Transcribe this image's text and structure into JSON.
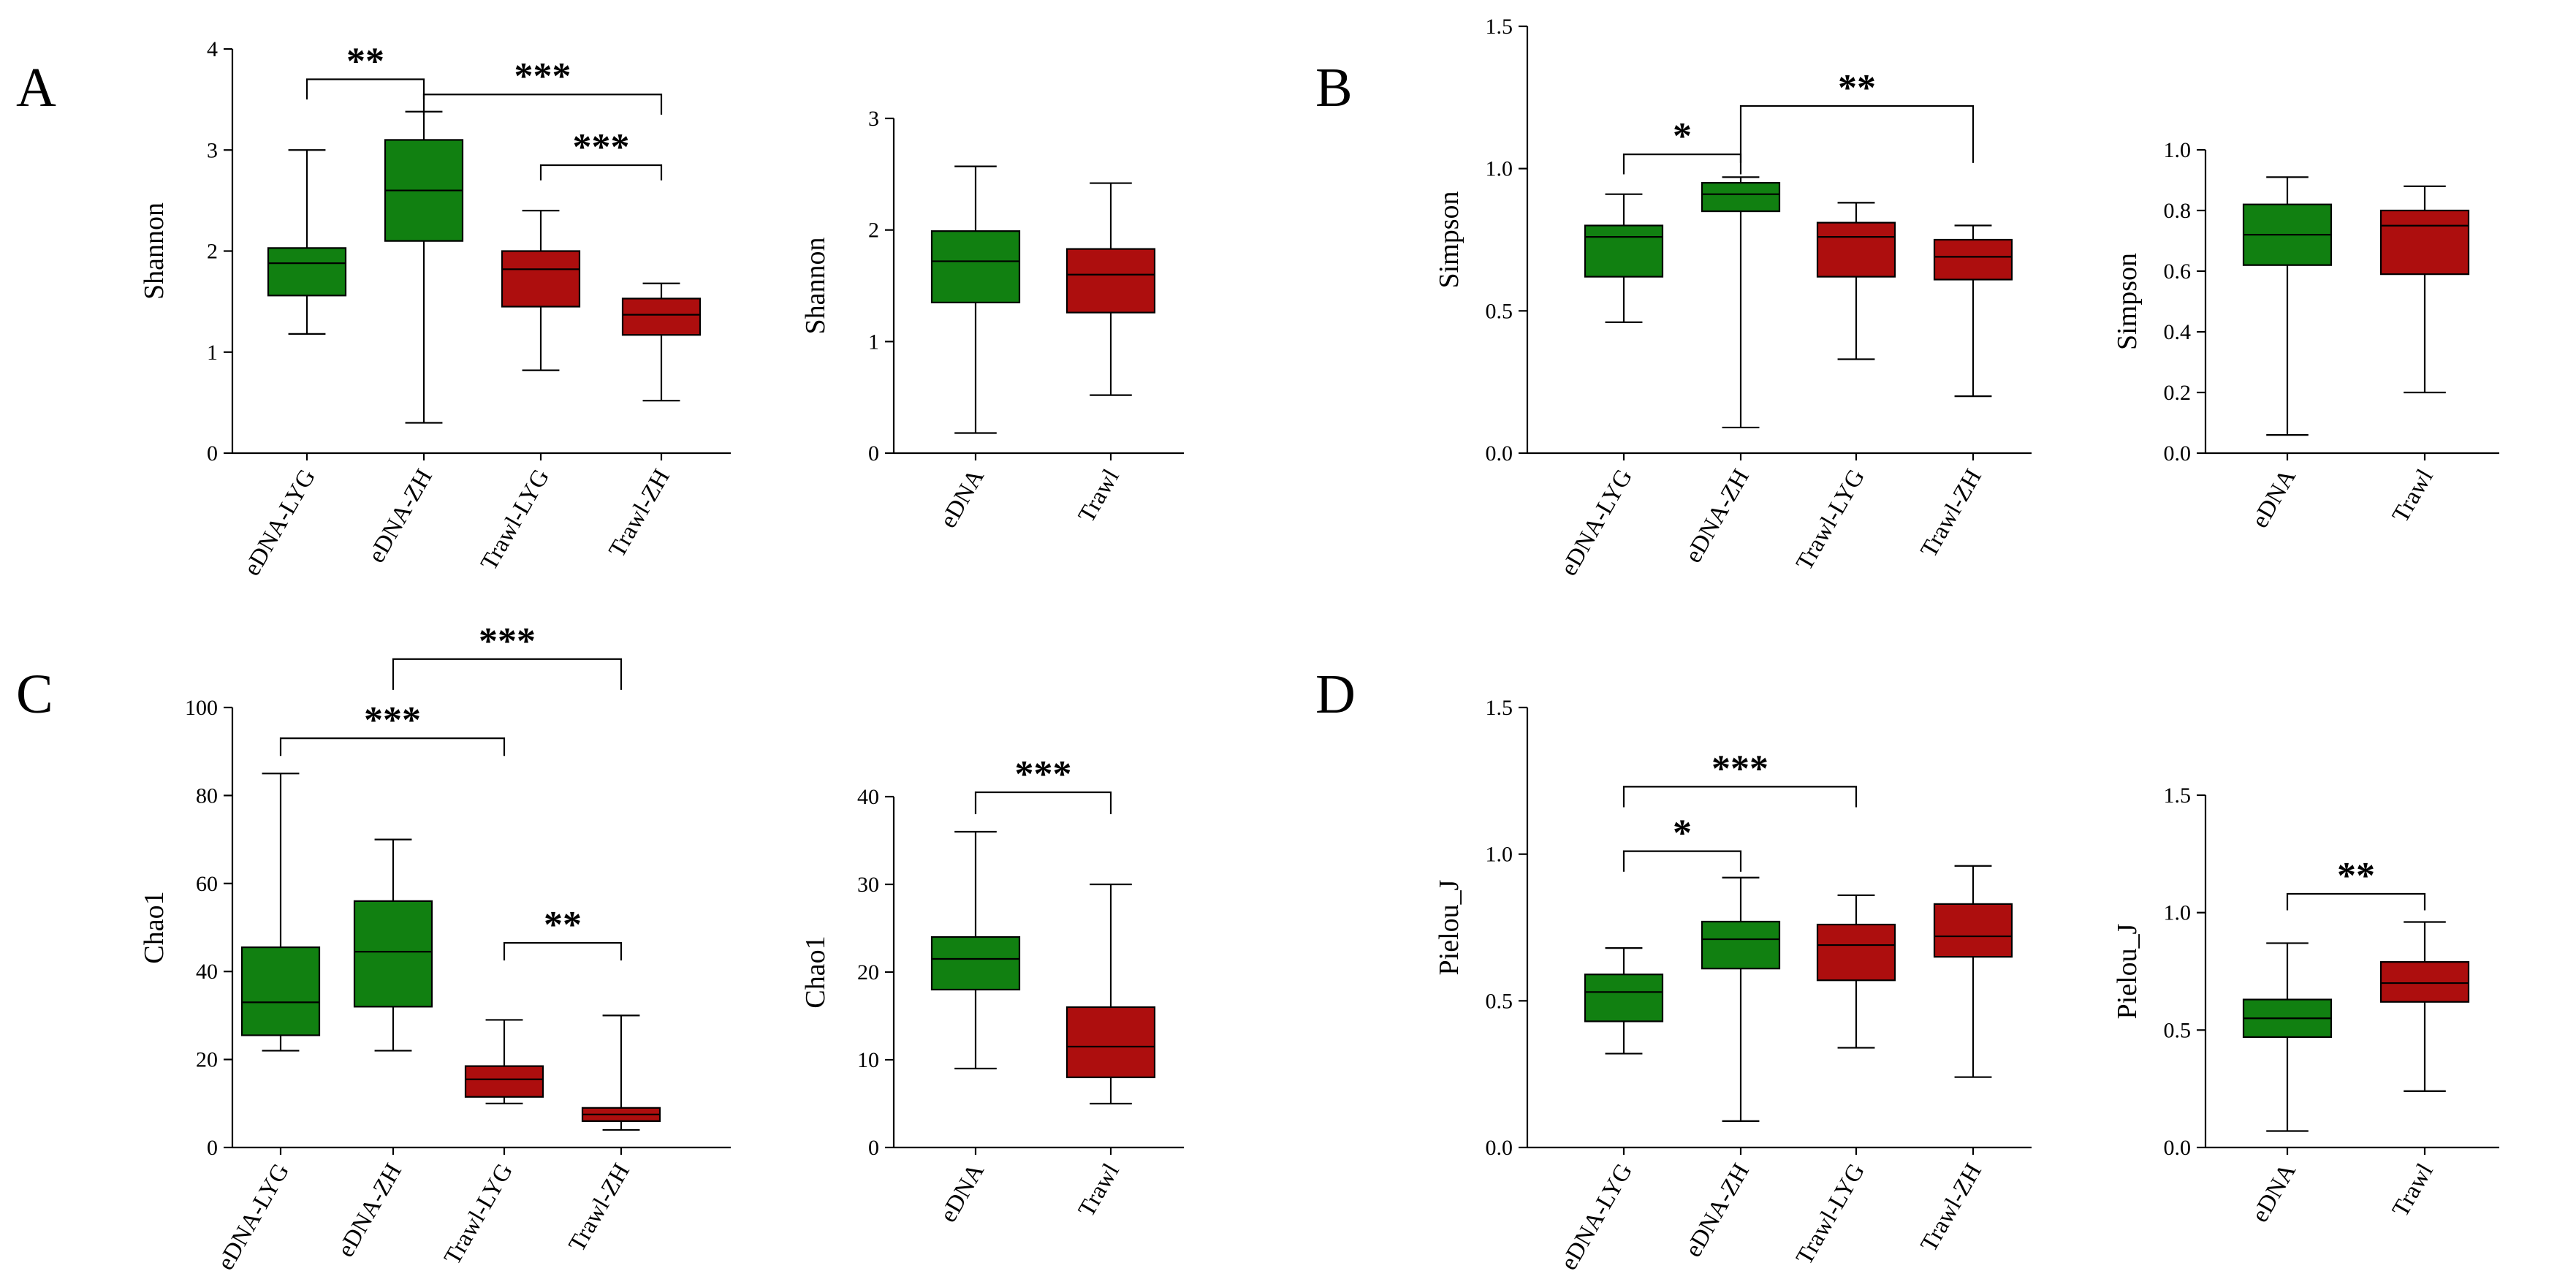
{
  "colors": {
    "eDNA": "#118011",
    "Trawl": "#ad0e0e",
    "axis": "#000000"
  },
  "chart_data": [
    {
      "panel": "A",
      "type": "box",
      "ylabel": "Shannon",
      "ylim": [
        0,
        4
      ],
      "yticks": [
        "0",
        "1",
        "2",
        "3",
        "4"
      ],
      "categories": [
        "eDNA-LYG",
        "eDNA-ZH",
        "Trawl-LYG",
        "Trawl-ZH"
      ],
      "groups": [
        "eDNA",
        "eDNA",
        "Trawl",
        "Trawl"
      ],
      "boxes": [
        {
          "min": 1.18,
          "q1": 1.56,
          "median": 1.88,
          "q3": 2.03,
          "max": 3.0
        },
        {
          "min": 0.3,
          "q1": 2.1,
          "median": 2.6,
          "q3": 3.1,
          "max": 3.38
        },
        {
          "min": 0.82,
          "q1": 1.45,
          "median": 1.82,
          "q3": 2.0,
          "max": 2.4
        },
        {
          "min": 0.52,
          "q1": 1.17,
          "median": 1.37,
          "q3": 1.53,
          "max": 1.68
        }
      ],
      "significance": [
        {
          "from": 0,
          "to": 1,
          "label": "**",
          "y": 3.7,
          "tick": 0.2
        },
        {
          "from": 1,
          "to": 3,
          "label": "***",
          "y": 3.55,
          "tick": 0.2
        },
        {
          "from": 2,
          "to": 3,
          "label": "***",
          "y": 2.85,
          "tick": 0.15
        }
      ]
    },
    {
      "panel": "A2",
      "type": "box",
      "ylabel": "Shannon",
      "ylim": [
        0,
        3
      ],
      "yticks": [
        "0",
        "1",
        "2",
        "3"
      ],
      "categories": [
        "eDNA",
        "Trawl"
      ],
      "groups": [
        "eDNA",
        "Trawl"
      ],
      "boxes": [
        {
          "min": 0.18,
          "q1": 1.35,
          "median": 1.72,
          "q3": 1.99,
          "max": 2.57
        },
        {
          "min": 0.52,
          "q1": 1.26,
          "median": 1.6,
          "q3": 1.83,
          "max": 2.42
        }
      ],
      "significance": []
    },
    {
      "panel": "B",
      "type": "box",
      "ylabel": "Simpson",
      "ylim": [
        0,
        1.5
      ],
      "yticks": [
        "0.0",
        "0.5",
        "1.0",
        "1.5"
      ],
      "categories": [
        "eDNA-LYG",
        "eDNA-ZH",
        "Trawl-LYG",
        "Trawl-ZH"
      ],
      "groups": [
        "eDNA",
        "eDNA",
        "Trawl",
        "Trawl"
      ],
      "boxes": [
        {
          "min": 0.46,
          "q1": 0.62,
          "median": 0.76,
          "q3": 0.8,
          "max": 0.91
        },
        {
          "min": 0.09,
          "q1": 0.85,
          "median": 0.91,
          "q3": 0.95,
          "max": 0.97
        },
        {
          "min": 0.33,
          "q1": 0.62,
          "median": 0.76,
          "q3": 0.81,
          "max": 0.88
        },
        {
          "min": 0.2,
          "q1": 0.61,
          "median": 0.69,
          "q3": 0.75,
          "max": 0.8
        }
      ],
      "significance": [
        {
          "from": 0,
          "to": 1,
          "label": "*",
          "y": 1.05,
          "tick": 0.07
        },
        {
          "from": 1,
          "to": 3,
          "label": "**",
          "y": 1.22,
          "tick": 0.2
        }
      ]
    },
    {
      "panel": "B2",
      "type": "box",
      "ylabel": "Simpson",
      "ylim": [
        0,
        1.0
      ],
      "yticks": [
        "0.0",
        "0.2",
        "0.4",
        "0.6",
        "0.8",
        "1.0"
      ],
      "categories": [
        "eDNA",
        "Trawl"
      ],
      "groups": [
        "eDNA",
        "Trawl"
      ],
      "boxes": [
        {
          "min": 0.06,
          "q1": 0.62,
          "median": 0.72,
          "q3": 0.82,
          "max": 0.91
        },
        {
          "min": 0.2,
          "q1": 0.59,
          "median": 0.75,
          "q3": 0.8,
          "max": 0.88
        }
      ],
      "significance": []
    },
    {
      "panel": "C",
      "type": "box",
      "ylabel": "Chao1",
      "ylim": [
        0,
        100
      ],
      "yticks": [
        "0",
        "20",
        "40",
        "60",
        "80",
        "100"
      ],
      "categories": [
        "eDNA-LYG",
        "eDNA-ZH",
        "Trawl-LYG",
        "Trawl-ZH"
      ],
      "groups": [
        "eDNA",
        "eDNA",
        "Trawl",
        "Trawl"
      ],
      "boxes": [
        {
          "min": 22,
          "q1": 25.5,
          "median": 33,
          "q3": 45.5,
          "max": 85
        },
        {
          "min": 22,
          "q1": 32,
          "median": 44.5,
          "q3": 56,
          "max": 70
        },
        {
          "min": 10,
          "q1": 11.5,
          "median": 15.5,
          "q3": 18.5,
          "max": 29
        },
        {
          "min": 4,
          "q1": 6,
          "median": 7.5,
          "q3": 9,
          "max": 30
        }
      ],
      "significance": [
        {
          "from": 1,
          "to": 3,
          "label": "***",
          "y": 111,
          "tick": 7
        },
        {
          "from": 0,
          "to": 2,
          "label": "***",
          "y": 93,
          "tick": 4
        },
        {
          "from": 2,
          "to": 3,
          "label": "**",
          "y": 46.5,
          "tick": 4
        }
      ]
    },
    {
      "panel": "C2",
      "type": "box",
      "ylabel": "Chao1",
      "ylim": [
        0,
        40
      ],
      "yticks": [
        "0",
        "10",
        "20",
        "30",
        "40"
      ],
      "categories": [
        "eDNA",
        "Trawl"
      ],
      "groups": [
        "eDNA",
        "Trawl"
      ],
      "boxes": [
        {
          "min": 9,
          "q1": 18,
          "median": 21.5,
          "q3": 24,
          "max": 36
        },
        {
          "min": 5,
          "q1": 8,
          "median": 11.5,
          "q3": 16,
          "max": 30
        }
      ],
      "significance": [
        {
          "from": 0,
          "to": 1,
          "label": "***",
          "y": 40.5,
          "tick": 2.5
        }
      ]
    },
    {
      "panel": "D",
      "type": "box",
      "ylabel": "Pielou_J",
      "ylim": [
        0,
        1.5
      ],
      "yticks": [
        "0.0",
        "0.5",
        "1.0",
        "1.5"
      ],
      "categories": [
        "eDNA-LYG",
        "eDNA-ZH",
        "Trawl-LYG",
        "Trawl-ZH"
      ],
      "groups": [
        "eDNA",
        "eDNA",
        "Trawl",
        "Trawl"
      ],
      "boxes": [
        {
          "min": 0.32,
          "q1": 0.43,
          "median": 0.53,
          "q3": 0.59,
          "max": 0.68
        },
        {
          "min": 0.09,
          "q1": 0.61,
          "median": 0.71,
          "q3": 0.77,
          "max": 0.92
        },
        {
          "min": 0.34,
          "q1": 0.57,
          "median": 0.69,
          "q3": 0.76,
          "max": 0.86
        },
        {
          "min": 0.24,
          "q1": 0.65,
          "median": 0.72,
          "q3": 0.83,
          "max": 0.96
        }
      ],
      "significance": [
        {
          "from": 0,
          "to": 2,
          "label": "***",
          "y": 1.23,
          "tick": 0.07
        },
        {
          "from": 0,
          "to": 1,
          "label": "*",
          "y": 1.01,
          "tick": 0.07
        }
      ]
    },
    {
      "panel": "D2",
      "type": "box",
      "ylabel": "Pielou_J",
      "ylim": [
        0,
        1.5
      ],
      "yticks": [
        "0.0",
        "0.5",
        "1.0",
        "1.5"
      ],
      "categories": [
        "eDNA",
        "Trawl"
      ],
      "groups": [
        "eDNA",
        "Trawl"
      ],
      "boxes": [
        {
          "min": 0.07,
          "q1": 0.47,
          "median": 0.55,
          "q3": 0.63,
          "max": 0.87
        },
        {
          "min": 0.24,
          "q1": 0.62,
          "median": 0.7,
          "q3": 0.79,
          "max": 0.96
        }
      ],
      "significance": [
        {
          "from": 0,
          "to": 1,
          "label": "**",
          "y": 1.08,
          "tick": 0.07
        }
      ]
    }
  ],
  "panel_letters": [
    "A",
    "B",
    "C",
    "D"
  ]
}
